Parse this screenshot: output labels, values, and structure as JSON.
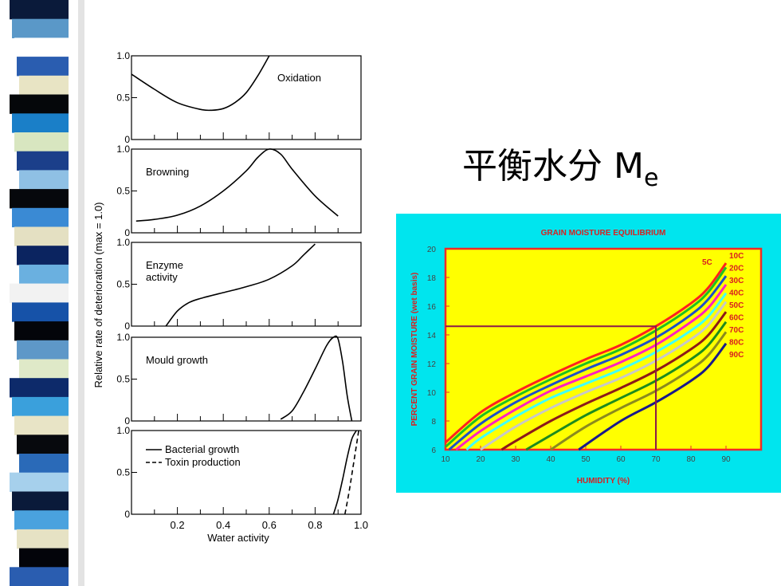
{
  "slide": {
    "title_main": "平衡水分 M",
    "title_sub": "e",
    "stripe_colors": [
      "#0a1a3a",
      "#5a98c8",
      "#ffffff",
      "#2a5db0",
      "#e8e4c4",
      "#05070a",
      "#1a7fc8",
      "#d8e6c0",
      "#1b3f8a",
      "#8fc0e4",
      "#06080c",
      "#3a8ad4",
      "#e4e0c2",
      "#0b2460",
      "#6ab0e0",
      "#f2f2f2",
      "#1652a8",
      "#03050a",
      "#5e98c8",
      "#dfe9c8",
      "#0d2a6a",
      "#3aa0dc",
      "#e8e4c6",
      "#07090d",
      "#2a6ab8",
      "#a6d0ec",
      "#0a1a3a",
      "#4aa2de",
      "#e6e2c4",
      "#03040a",
      "#2a5db0"
    ]
  },
  "chart_data": [
    {
      "type": "line",
      "name": "deterioration",
      "ylabel": "Relative rate of deterioration (max = 1.0)",
      "xlabel": "Water activity",
      "xlim": [
        0,
        1.0
      ],
      "x_ticks": [
        "0.2",
        "0.4",
        "0.6",
        "0.8",
        "1.0"
      ],
      "panels": [
        {
          "label": "Oxidation",
          "y_ticks": [
            "1.0",
            "0.5",
            "0"
          ],
          "ylim": [
            0,
            1.0
          ],
          "series": [
            {
              "x": [
                0,
                0.1,
                0.2,
                0.3,
                0.35,
                0.4,
                0.45,
                0.5,
                0.55,
                0.6
              ],
              "y": [
                0.78,
                0.6,
                0.44,
                0.36,
                0.35,
                0.37,
                0.44,
                0.56,
                0.76,
                1.0
              ],
              "style": "solid"
            }
          ]
        },
        {
          "label": "Browning",
          "y_ticks": [
            "1.0",
            "0.5",
            "0"
          ],
          "ylim": [
            0,
            1.0
          ],
          "series": [
            {
              "x": [
                0.02,
                0.1,
                0.2,
                0.3,
                0.4,
                0.5,
                0.55,
                0.6,
                0.65,
                0.7,
                0.8,
                0.9
              ],
              "y": [
                0.14,
                0.16,
                0.21,
                0.32,
                0.5,
                0.74,
                0.9,
                1.0,
                0.94,
                0.76,
                0.44,
                0.2
              ],
              "style": "solid"
            }
          ]
        },
        {
          "label": "Enzyme\nactivity",
          "y_ticks": [
            "1.0",
            "0.5",
            "0"
          ],
          "ylim": [
            0,
            1.0
          ],
          "series": [
            {
              "x": [
                0.15,
                0.2,
                0.25,
                0.3,
                0.4,
                0.5,
                0.6,
                0.7,
                0.75,
                0.8
              ],
              "y": [
                0.0,
                0.18,
                0.28,
                0.33,
                0.4,
                0.47,
                0.56,
                0.72,
                0.85,
                0.98
              ],
              "style": "solid"
            }
          ]
        },
        {
          "label": "Mould growth",
          "y_ticks": [
            "1.0",
            "0.5",
            "0"
          ],
          "ylim": [
            0,
            1.0
          ],
          "series": [
            {
              "x": [
                0.65,
                0.7,
                0.75,
                0.8,
                0.85,
                0.88,
                0.9,
                0.92,
                0.94,
                0.96
              ],
              "y": [
                0.02,
                0.12,
                0.35,
                0.62,
                0.9,
                1.0,
                0.98,
                0.7,
                0.3,
                0.0
              ],
              "style": "solid"
            }
          ]
        },
        {
          "label": "",
          "y_ticks": [
            "1.0",
            "0.5",
            "0"
          ],
          "ylim": [
            0,
            1.0
          ],
          "legend": [
            {
              "text": "Bacterial growth",
              "style": "solid"
            },
            {
              "text": "Toxin production",
              "style": "dashed"
            }
          ],
          "series": [
            {
              "x": [
                0.88,
                0.9,
                0.92,
                0.94,
                0.96,
                0.98
              ],
              "y": [
                0.0,
                0.18,
                0.42,
                0.68,
                0.9,
                1.0
              ],
              "style": "solid"
            },
            {
              "x": [
                0.93,
                0.95,
                0.97,
                0.99
              ],
              "y": [
                0.0,
                0.3,
                0.65,
                1.0
              ],
              "style": "dashed"
            }
          ]
        }
      ]
    },
    {
      "type": "line",
      "name": "grain-moisture",
      "title": "GRAIN MOISTURE EQUILIBRIUM",
      "xlabel": "HUMIDITY (%)",
      "ylabel": "PERCENT GRAIN MOISTURE  (wet basis)",
      "xlim": [
        10,
        100
      ],
      "ylim": [
        6,
        20
      ],
      "x_ticks": [
        10,
        20,
        30,
        40,
        50,
        60,
        70,
        80,
        90
      ],
      "y_ticks": [
        6,
        8,
        10,
        12,
        14,
        16,
        18,
        20
      ],
      "reference": {
        "x": 70,
        "y": 14.6
      },
      "colors": {
        "background": "#00e5ee",
        "plot": "#ffff00",
        "frame": "#ee2a2a",
        "title": "#d92020",
        "reference": "#8b1a4a"
      },
      "series": [
        {
          "name": "5C",
          "color": "#ff2020",
          "x": [
            10,
            20,
            30,
            40,
            50,
            60,
            70,
            80,
            85,
            90
          ],
          "y": [
            6.5,
            8.6,
            10.0,
            11.2,
            12.3,
            13.3,
            14.6,
            16.2,
            17.3,
            19.0
          ]
        },
        {
          "name": "10C",
          "color": "#20c020",
          "x": [
            10,
            20,
            30,
            40,
            50,
            60,
            70,
            80,
            85,
            90
          ],
          "y": [
            6.2,
            8.3,
            9.7,
            10.9,
            12.0,
            13.0,
            14.3,
            15.9,
            17.0,
            18.7
          ]
        },
        {
          "name": "20C",
          "color": "#1e50c8",
          "x": [
            11,
            20,
            30,
            40,
            50,
            60,
            70,
            80,
            85,
            90
          ],
          "y": [
            6.0,
            7.8,
            9.3,
            10.5,
            11.6,
            12.6,
            13.8,
            15.4,
            16.5,
            18.1
          ]
        },
        {
          "name": "30C",
          "color": "#ff20c0",
          "x": [
            13,
            20,
            30,
            40,
            50,
            60,
            70,
            80,
            85,
            90
          ],
          "y": [
            6.0,
            7.3,
            8.8,
            10.1,
            11.1,
            12.1,
            13.3,
            14.9,
            15.9,
            17.5
          ]
        },
        {
          "name": "40C",
          "color": "#40ffff",
          "x": [
            16,
            20,
            30,
            40,
            50,
            60,
            70,
            80,
            85,
            90
          ],
          "y": [
            6.0,
            6.8,
            8.3,
            9.6,
            10.6,
            11.6,
            12.8,
            14.3,
            15.3,
            16.9
          ]
        },
        {
          "name": "50C",
          "color": "#c8c8c8",
          "x": [
            20,
            30,
            40,
            50,
            60,
            70,
            80,
            85,
            90
          ],
          "y": [
            6.0,
            7.6,
            8.9,
            10.0,
            11.0,
            12.2,
            13.7,
            14.7,
            16.3
          ]
        },
        {
          "name": "60C",
          "color": "#8b1a1a",
          "x": [
            26,
            30,
            40,
            50,
            60,
            70,
            80,
            85,
            90
          ],
          "y": [
            6.0,
            6.6,
            8.0,
            9.2,
            10.3,
            11.5,
            13.0,
            14.0,
            15.6
          ]
        },
        {
          "name": "70C",
          "color": "#1e8a1e",
          "x": [
            33,
            40,
            50,
            60,
            70,
            80,
            85,
            90
          ],
          "y": [
            6.0,
            7.0,
            8.4,
            9.6,
            10.8,
            12.3,
            13.3,
            14.9
          ]
        },
        {
          "name": "80C",
          "color": "#8a8a1e",
          "x": [
            40,
            50,
            60,
            70,
            80,
            85,
            90
          ],
          "y": [
            6.0,
            7.6,
            8.9,
            10.1,
            11.6,
            12.6,
            14.2
          ]
        },
        {
          "name": "90C",
          "color": "#1a1a8a",
          "x": [
            48,
            60,
            70,
            80,
            85,
            90
          ],
          "y": [
            6.0,
            8.0,
            9.3,
            10.8,
            11.8,
            13.4
          ]
        }
      ],
      "legend": [
        {
          "text": "5C",
          "color": "#d92020"
        },
        {
          "text": "10C",
          "color": "#d92020"
        },
        {
          "text": "20C",
          "color": "#d92020"
        },
        {
          "text": "30C",
          "color": "#d92020"
        },
        {
          "text": "40C",
          "color": "#d92020"
        },
        {
          "text": "50C",
          "color": "#d92020"
        },
        {
          "text": "60C",
          "color": "#d92020"
        },
        {
          "text": "70C",
          "color": "#d92020"
        },
        {
          "text": "80C",
          "color": "#d92020"
        },
        {
          "text": "90C",
          "color": "#d92020"
        }
      ]
    }
  ]
}
